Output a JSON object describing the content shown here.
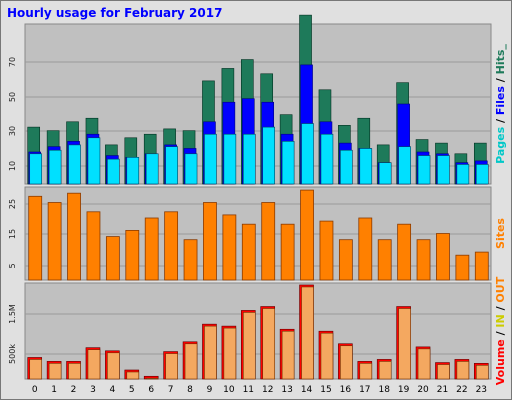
{
  "title": "Hourly usage for February 2017",
  "chart_data": [
    {
      "type": "bar",
      "panel": "pages-files-hits",
      "series": [
        {
          "name": "Hits",
          "color": "#1e7a5a",
          "values": [
            32,
            30,
            35,
            37,
            22,
            26,
            28,
            31,
            30,
            58,
            65,
            70,
            62,
            39,
            95,
            53,
            33,
            37,
            22,
            57,
            25,
            23,
            17,
            23
          ]
        },
        {
          "name": "Files",
          "color": "#0000ff",
          "values": [
            18,
            21,
            24,
            28,
            16,
            15,
            17,
            22,
            20,
            35,
            46,
            48,
            46,
            28,
            67,
            35,
            23,
            20,
            12,
            45,
            18,
            17,
            12,
            13
          ]
        },
        {
          "name": "Pages",
          "color": "#00e0ff",
          "values": [
            17,
            19,
            22,
            26,
            14,
            15,
            17,
            21,
            17,
            28,
            28,
            28,
            32,
            24,
            34,
            28,
            19,
            20,
            12,
            21,
            16,
            16,
            11,
            11
          ]
        }
      ],
      "yticks": [
        "10",
        "30",
        "50",
        "70"
      ],
      "ylim": [
        0,
        90
      ],
      "legend_parts": [
        {
          "text": "Pages",
          "color": "#00c8c8"
        },
        {
          "text": " / ",
          "color": "#000000"
        },
        {
          "text": "Files",
          "color": "#0000ff"
        },
        {
          "text": " / ",
          "color": "#000000"
        },
        {
          "text": "Hits_",
          "color": "#1e7a5a"
        }
      ]
    },
    {
      "type": "bar",
      "panel": "sites",
      "series": [
        {
          "name": "Sites",
          "color": "#ff8000",
          "values": [
            27,
            25,
            28,
            22,
            14,
            16,
            20,
            22,
            13,
            25,
            21,
            18,
            25,
            18,
            29,
            19,
            13,
            20,
            13,
            18,
            13,
            15,
            8,
            9
          ]
        }
      ],
      "yticks": [
        "5",
        "15",
        "25"
      ],
      "ylim": [
        0,
        30
      ],
      "legend_parts": [
        {
          "text": "Sites",
          "color": "#ff8000"
        }
      ]
    },
    {
      "type": "bar",
      "panel": "in-out-volume",
      "series": [
        {
          "name": "Volume",
          "color": "#ff0000",
          "values": [
            0.55,
            0.45,
            0.45,
            0.8,
            0.72,
            0.23,
            0.07,
            0.7,
            0.95,
            1.4,
            1.35,
            1.75,
            1.85,
            1.27,
            2.4,
            1.22,
            0.9,
            0.45,
            0.5,
            1.85,
            0.82,
            0.42,
            0.5,
            0.4
          ]
        },
        {
          "name": "IN",
          "color": "#ffff00",
          "values": [
            0,
            0,
            0,
            0,
            0,
            0,
            0,
            0,
            0,
            0,
            0,
            0,
            0,
            0,
            0,
            0,
            0,
            0,
            0,
            0,
            0,
            0,
            0,
            0
          ]
        },
        {
          "name": "OUT",
          "color": "#ff8000",
          "values": [
            0,
            0,
            0,
            0,
            0,
            0,
            0,
            0,
            0,
            0,
            0,
            0,
            0,
            0,
            0,
            0,
            0,
            0,
            0,
            0,
            0,
            0,
            0,
            0
          ]
        }
      ],
      "yticks": [
        "500k",
        "1.5M"
      ],
      "ylim": [
        0,
        2.45
      ],
      "legend_parts": [
        {
          "text": "Volume",
          "color": "#ff0000"
        },
        {
          "text": " / ",
          "color": "#000000"
        },
        {
          "text": "IN",
          "color": "#cccc00"
        },
        {
          "text": " / ",
          "color": "#000000"
        },
        {
          "text": "OUT",
          "color": "#ff8000"
        }
      ]
    }
  ],
  "categories": [
    "0",
    "1",
    "2",
    "3",
    "4",
    "5",
    "6",
    "7",
    "8",
    "9",
    "10",
    "11",
    "12",
    "13",
    "14",
    "15",
    "16",
    "17",
    "18",
    "19",
    "20",
    "21",
    "22",
    "23"
  ]
}
